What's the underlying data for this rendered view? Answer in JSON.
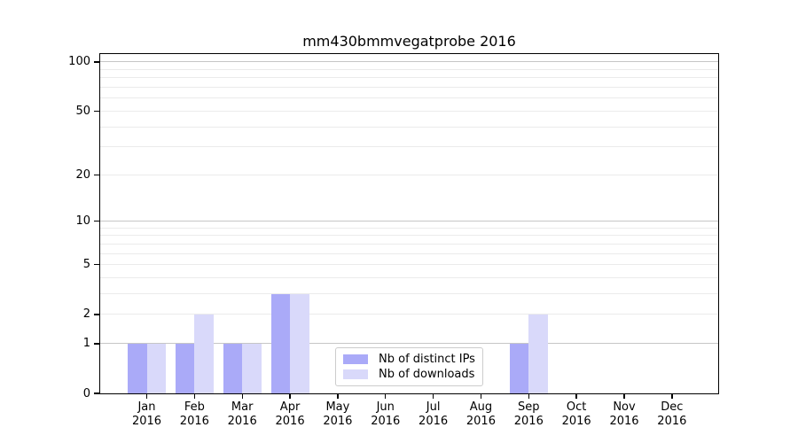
{
  "chart_data": {
    "type": "bar",
    "title": "mm430bmmvegatprobe 2016",
    "categories": [
      "Jan 2016",
      "Feb 2016",
      "Mar 2016",
      "Apr 2016",
      "May 2016",
      "Jun 2016",
      "Jul 2016",
      "Aug 2016",
      "Sep 2016",
      "Oct 2016",
      "Nov 2016",
      "Dec 2016"
    ],
    "series": [
      {
        "name": "Nb of distinct IPs",
        "color": "#aaaaf8",
        "values": [
          1,
          1,
          1,
          3,
          0,
          0,
          0,
          0,
          1,
          0,
          0,
          0
        ]
      },
      {
        "name": "Nb of downloads",
        "color": "#d9d9fa",
        "values": [
          1,
          2,
          1,
          3,
          0,
          0,
          0,
          0,
          2,
          0,
          0,
          0
        ]
      }
    ],
    "yscale": "log1p",
    "ylim": [
      0,
      112
    ],
    "yticks": [
      0,
      1,
      2,
      5,
      10,
      20,
      50,
      100
    ],
    "major_gridlines": [
      1,
      10,
      100
    ],
    "minor_gridlines": [
      2,
      3,
      4,
      5,
      6,
      7,
      8,
      9,
      20,
      30,
      40,
      50,
      60,
      70,
      80,
      90
    ],
    "grid": "horizontal",
    "legend_position": "inside lower-center",
    "xlabel": "",
    "ylabel": ""
  },
  "colors": {
    "bar_distinct_ips": "#aaaaf8",
    "bar_downloads": "#d9d9fa",
    "major_grid": "#c6c6c6",
    "minor_grid": "#ebebeb",
    "axis": "#000000",
    "background": "#ffffff",
    "legend_border": "#cccccc"
  }
}
